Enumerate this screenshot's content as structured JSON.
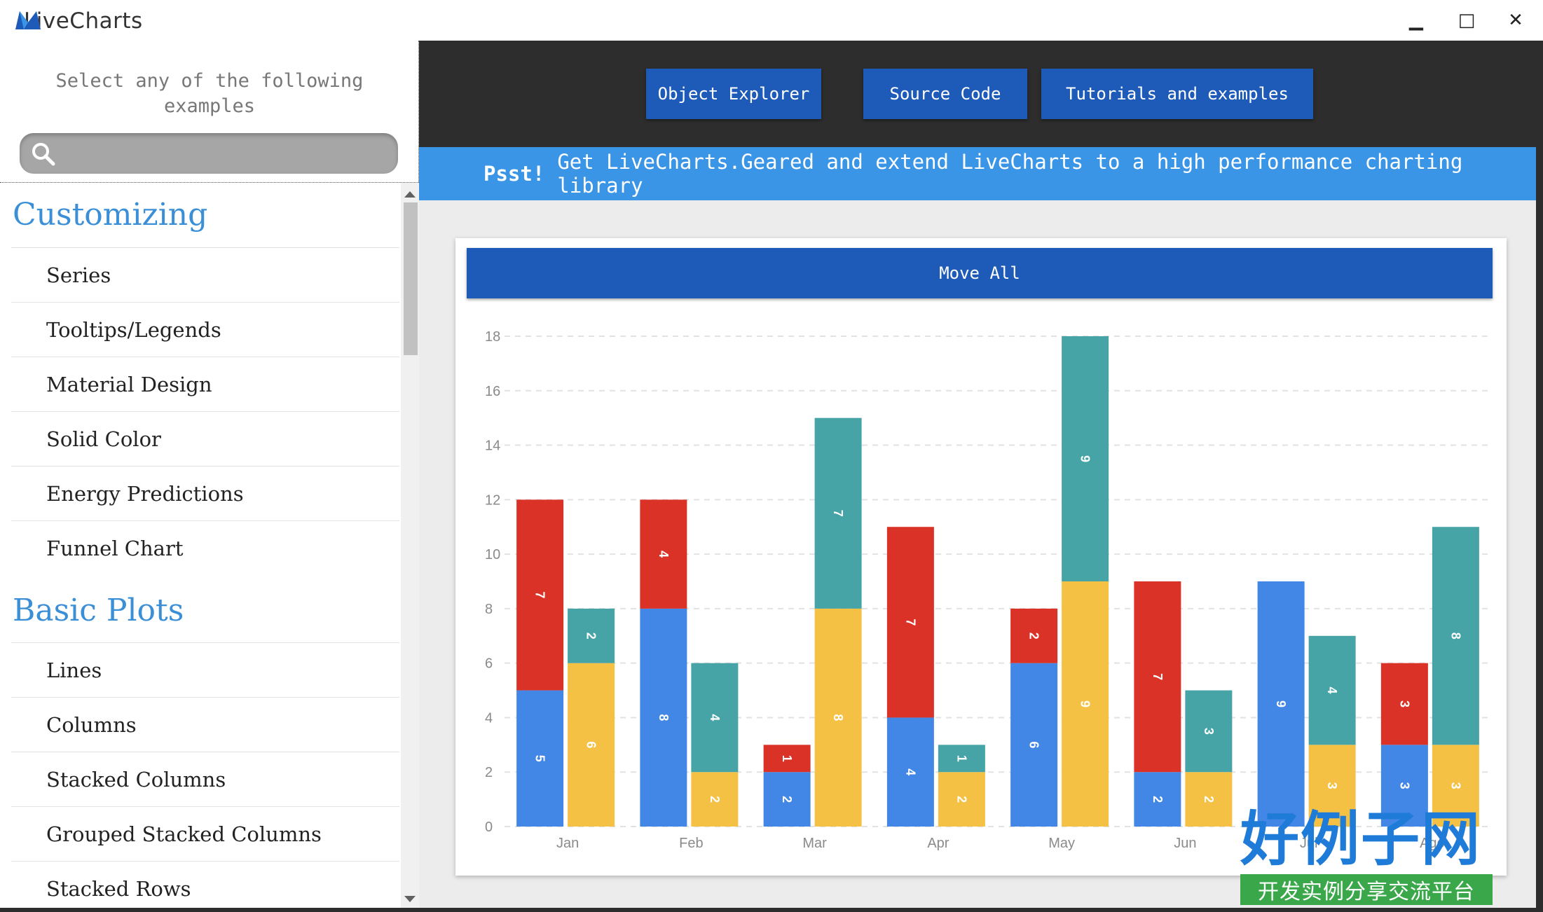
{
  "window": {
    "app_name": "LiveCharts",
    "minimize": "▁",
    "maximize": "□",
    "close": "✕"
  },
  "sidebar": {
    "hint": "Select any of the following examples",
    "search": {
      "placeholder": "",
      "value": ""
    },
    "groups": [
      {
        "title": "Customizing",
        "items": [
          "Series",
          "Tooltips/Legends",
          "Material Design",
          "Solid Color",
          "Energy Predictions",
          "Funnel Chart"
        ]
      },
      {
        "title": "Basic Plots",
        "items": [
          "Lines",
          "Columns",
          "Stacked Columns",
          "Grouped Stacked Columns",
          "Stacked Rows"
        ]
      }
    ]
  },
  "toolbar": {
    "object_explorer": "Object Explorer",
    "source_code": "Source Code",
    "tutorials": "Tutorials and examples"
  },
  "banner": {
    "lead": "Psst!",
    "text": "Get LiveCharts.Geared and extend LiveCharts to a high performance charting library"
  },
  "move_all_label": "Move All",
  "colors": {
    "blue": "#4286e6",
    "red": "#da3226",
    "teal": "#46a4a6",
    "yellow": "#f5c144",
    "accent": "#1e5bb8"
  },
  "chart_data": {
    "type": "bar",
    "stacked": true,
    "grouped": true,
    "categories": [
      "Jan",
      "Feb",
      "Mar",
      "Apr",
      "May",
      "Jun",
      "Jul",
      "Ago"
    ],
    "ylim": [
      0,
      18
    ],
    "yticks": [
      0,
      2,
      4,
      6,
      8,
      10,
      12,
      14,
      16,
      18
    ],
    "grid": true,
    "groups": [
      {
        "series": [
          {
            "values": [
              5,
              8,
              2,
              4,
              6,
              2,
              9,
              3
            ],
            "color": "#4286e6"
          },
          {
            "values": [
              7,
              4,
              1,
              7,
              2,
              7,
              0,
              3
            ],
            "color": "#da3226"
          }
        ]
      },
      {
        "series": [
          {
            "values": [
              6,
              2,
              8,
              2,
              9,
              2,
              3,
              3
            ],
            "color": "#f5c144"
          },
          {
            "values": [
              2,
              4,
              7,
              1,
              9,
              3,
              4,
              8
            ],
            "color": "#46a4a6"
          }
        ]
      }
    ]
  },
  "watermark": {
    "big": "好例子网",
    "small": "开发实例分享交流平台"
  }
}
